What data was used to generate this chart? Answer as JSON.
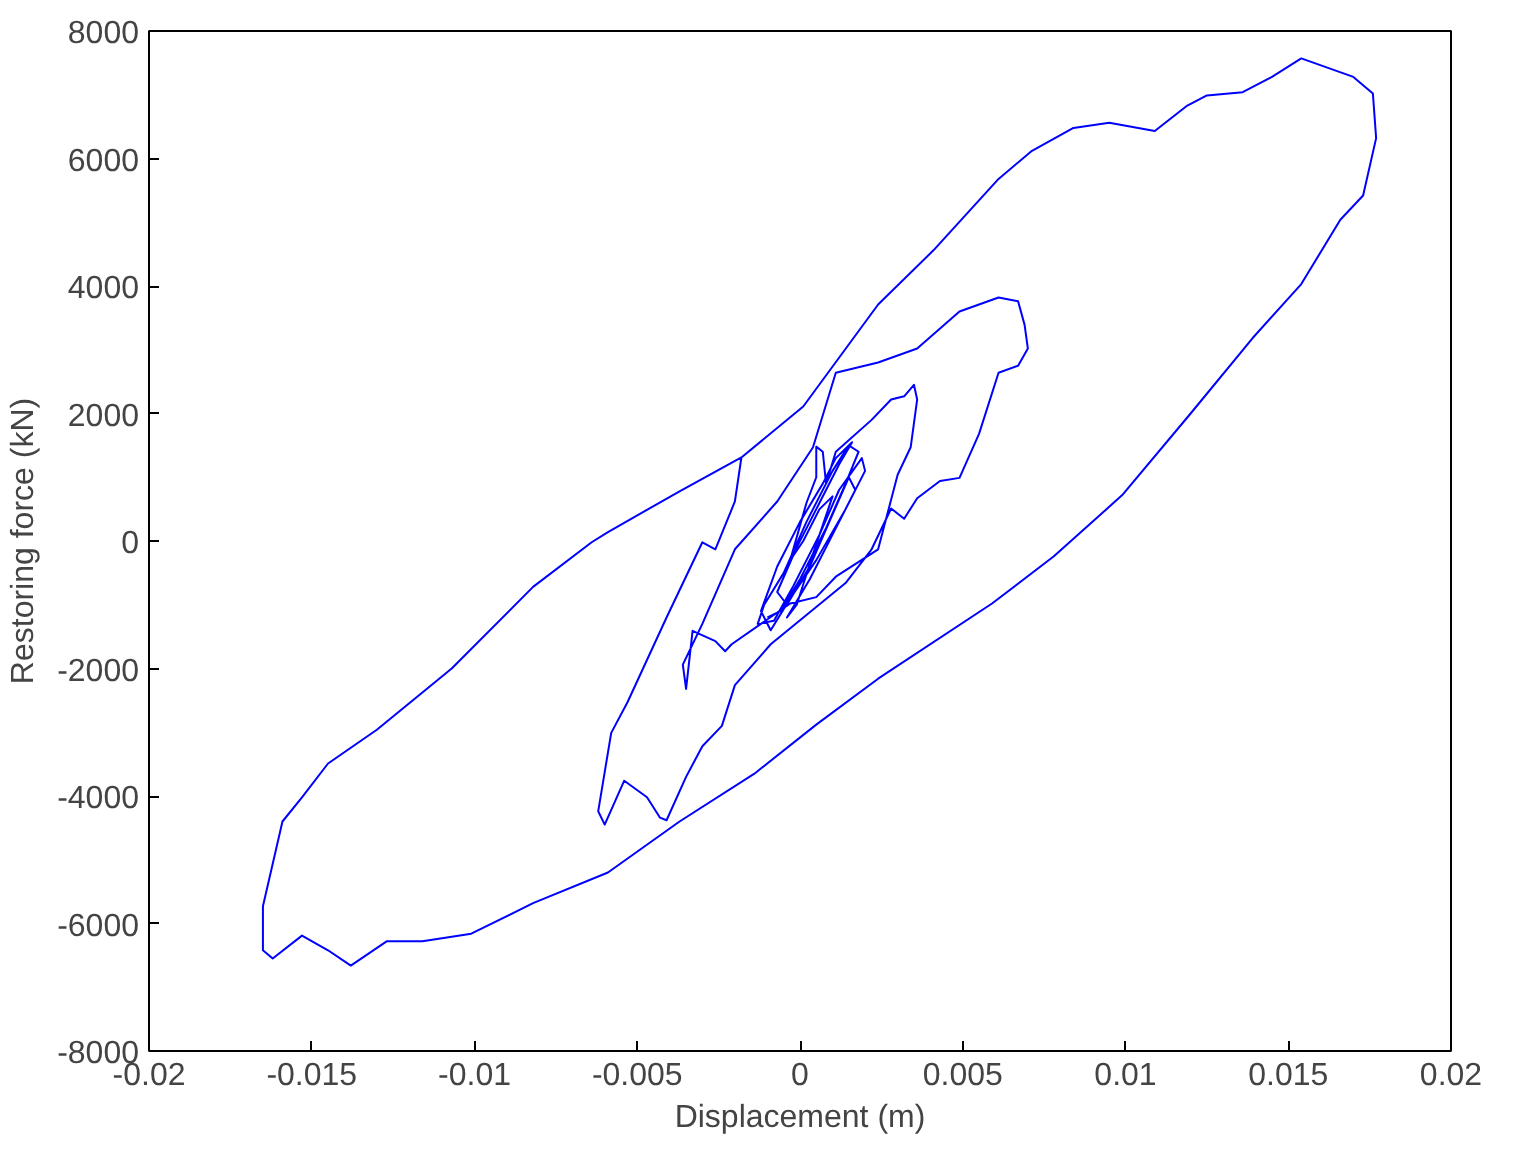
{
  "chart_data": {
    "type": "line",
    "xlabel": "Displacement (m)",
    "ylabel": "Restoring force (kN)",
    "xlim": [
      -0.02,
      0.02
    ],
    "xticks": [
      -0.02,
      -0.015,
      -0.01,
      -0.005,
      0,
      0.005,
      0.01,
      0.015,
      0.02
    ],
    "ylim": [
      -8000,
      8000
    ],
    "yticks": [
      -8000,
      -6000,
      -4000,
      -2000,
      0,
      2000,
      4000,
      6000,
      8000
    ],
    "grid": false,
    "line_style": "solid",
    "series": [
      {
        "color": "#0000ff",
        "x": [
          -0.001,
          -0.0006,
          0.0,
          0.0008,
          0.0014,
          0.0018,
          0.0015,
          0.001,
          0.0002,
          -0.0005,
          -0.0011,
          -0.0013,
          -0.0008,
          -0.0002,
          0.0006,
          0.0012,
          0.0019,
          0.002,
          0.0014,
          0.0005,
          -0.0003,
          -0.0009,
          -0.0012,
          -0.0007,
          0.0,
          0.0007,
          0.0011,
          0.0016,
          0.0012,
          0.0006,
          -0.0001,
          -0.0007,
          -0.0004,
          0.0003,
          0.0009,
          0.0015,
          0.0017,
          0.001,
          0.0003,
          -0.0004,
          -0.0001,
          0.0004,
          0.001,
          0.0006,
          0.0001,
          -0.0003,
          0.0002,
          0.0005,
          0.0005,
          0.0007,
          0.0008,
          0.0011,
          0.0022,
          0.0028,
          0.0032,
          0.0035,
          0.0036,
          0.0034,
          0.003,
          0.0024,
          0.0011,
          0.0005,
          -0.0003,
          -0.0012,
          -0.0021,
          -0.0023,
          -0.0026,
          -0.0033,
          -0.0035,
          -0.0036,
          -0.003,
          -0.002,
          -0.0007,
          0.0004,
          0.0011,
          0.0024,
          0.0036,
          0.0049,
          0.0061,
          0.0067,
          0.0069,
          0.007,
          0.0067,
          0.0061,
          0.0055,
          0.0049,
          0.0043,
          0.0036,
          0.0032,
          0.0028,
          0.0022,
          0.0014,
          -0.0009,
          -0.002,
          -0.0024,
          -0.003,
          -0.0035,
          -0.0041,
          -0.0043,
          -0.0047,
          -0.0054,
          -0.006,
          -0.0062,
          -0.0058,
          -0.0053,
          -0.0041,
          -0.003,
          -0.0026,
          -0.002,
          -0.0018,
          0.0001,
          0.0024,
          0.0041,
          0.0061,
          0.0071,
          0.0084,
          0.0095,
          0.0109,
          0.0119,
          0.0125,
          0.0136,
          0.0145,
          0.0154,
          0.017,
          0.0176,
          0.0177,
          0.0173,
          0.0166,
          0.0154,
          0.0139,
          0.012,
          0.0099,
          0.0078,
          0.0059,
          0.0024,
          0.0005,
          -0.0014,
          -0.0037,
          -0.0059,
          -0.0082,
          -0.0101,
          -0.0116,
          -0.0127,
          -0.0138,
          -0.0145,
          -0.0153,
          -0.0162,
          -0.0165,
          -0.0165,
          -0.0159,
          -0.0153,
          -0.0145,
          -0.013,
          -0.0107,
          -0.0082,
          -0.0064,
          -0.0059,
          -0.0037,
          -0.0018,
          0.0001
        ],
        "values": [
          -1200,
          -1100,
          -600,
          200,
          900,
          1400,
          1500,
          1100,
          300,
          -500,
          -1000,
          -1300,
          -1250,
          -700,
          100,
          800,
          1300,
          1100,
          500,
          -300,
          -900,
          -1400,
          -1100,
          -400,
          300,
          900,
          1300,
          1550,
          1200,
          600,
          -100,
          -800,
          -1000,
          -400,
          300,
          1000,
          800,
          100,
          -600,
          -1200,
          -1000,
          -200,
          700,
          500,
          0,
          -300,
          600,
          1000,
          1480,
          1400,
          900,
          1400,
          1900,
          2220,
          2270,
          2450,
          2220,
          1470,
          1040,
          -130,
          -560,
          -880,
          -980,
          -1300,
          -1620,
          -1730,
          -1570,
          -1410,
          -2320,
          -1940,
          -1300,
          -130,
          620,
          1470,
          2640,
          2800,
          3020,
          3600,
          3820,
          3760,
          3390,
          3020,
          2750,
          2640,
          1680,
          990,
          940,
          670,
          350,
          510,
          -130,
          -660,
          -1620,
          -2260,
          -2900,
          -3220,
          -3700,
          -4380,
          -4340,
          -4020,
          -3760,
          -4450,
          -4240,
          -3010,
          -2530,
          -1200,
          -20,
          -130,
          620,
          1310,
          2110,
          3710,
          4560,
          5680,
          6110,
          6480,
          6560,
          6430,
          6830,
          6990,
          7040,
          7280,
          7570,
          7280,
          7020,
          6320,
          5420,
          5040,
          4030,
          3180,
          2000,
          720,
          -240,
          -980,
          -2160,
          -2880,
          -3650,
          -4400,
          -5200,
          -5680,
          -6160,
          -6280,
          -6280,
          -6660,
          -6420,
          -6190,
          -6550,
          -6420,
          -5730,
          -4400,
          -4020,
          -3490,
          -2960,
          -2000,
          -720,
          -20,
          140,
          780,
          1310,
          2110
        ]
      }
    ]
  }
}
